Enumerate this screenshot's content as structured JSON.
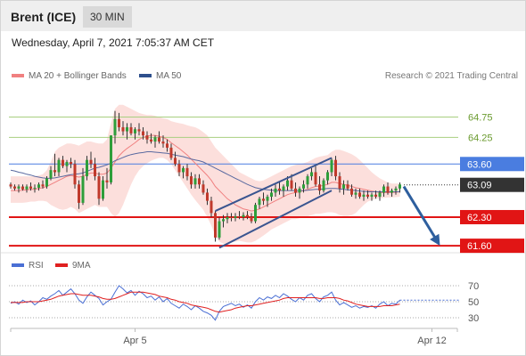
{
  "header": {
    "instrument": "Brent (ICE)",
    "timeframe": "30 MIN"
  },
  "date_text": "Wednesday, April 7, 2021 7:05:37 AM CET",
  "legend": {
    "ma20": {
      "label": "MA 20 + Bollinger Bands",
      "color": "#f08080"
    },
    "ma50": {
      "label": "MA 50",
      "color": "#2e4f8c"
    }
  },
  "credit": "Research © 2021 Trading Central",
  "rsi_legend": {
    "rsi": {
      "label": "RSI",
      "color": "#4a6fd4"
    },
    "ma9": {
      "label": "9MA",
      "color": "#e02020"
    }
  },
  "chart_data": [
    {
      "type": "candlestick",
      "ylim": [
        61.45,
        65.0
      ],
      "x_ticks": [
        "Apr 5",
        "Apr 12"
      ],
      "ohlc": [
        [
          63.1,
          63.15,
          63.0,
          63.05
        ],
        [
          63.05,
          63.1,
          62.95,
          63.0
        ],
        [
          63.0,
          63.1,
          62.9,
          63.05
        ],
        [
          63.05,
          63.1,
          62.95,
          62.98
        ],
        [
          62.98,
          63.1,
          62.9,
          63.05
        ],
        [
          63.05,
          63.15,
          62.95,
          63.0
        ],
        [
          63.0,
          63.1,
          62.9,
          63.02
        ],
        [
          63.02,
          63.15,
          62.95,
          63.1
        ],
        [
          63.1,
          63.2,
          63.0,
          63.05
        ],
        [
          63.05,
          63.3,
          63.0,
          63.25
        ],
        [
          63.25,
          63.55,
          63.2,
          63.45
        ],
        [
          63.45,
          63.85,
          63.3,
          63.4
        ],
        [
          63.4,
          63.75,
          63.3,
          63.7
        ],
        [
          63.7,
          63.8,
          63.5,
          63.55
        ],
        [
          63.55,
          63.7,
          63.4,
          63.65
        ],
        [
          63.65,
          63.75,
          63.5,
          63.6
        ],
        [
          63.6,
          63.7,
          63.0,
          63.1
        ],
        [
          63.1,
          63.2,
          62.5,
          62.65
        ],
        [
          62.65,
          63.5,
          62.6,
          63.3
        ],
        [
          63.3,
          63.8,
          63.2,
          63.7
        ],
        [
          63.7,
          63.9,
          63.5,
          63.6
        ],
        [
          63.6,
          63.75,
          63.2,
          63.3
        ],
        [
          63.3,
          63.4,
          62.6,
          62.75
        ],
        [
          62.75,
          63.3,
          62.7,
          63.2
        ],
        [
          63.2,
          63.5,
          63.0,
          63.15
        ],
        [
          63.15,
          64.3,
          63.1,
          64.3
        ],
        [
          64.3,
          64.9,
          64.1,
          64.7
        ],
        [
          64.7,
          64.85,
          64.4,
          64.5
        ],
        [
          64.5,
          64.65,
          64.3,
          64.4
        ],
        [
          64.4,
          64.6,
          64.2,
          64.5
        ],
        [
          64.5,
          64.6,
          64.3,
          64.35
        ],
        [
          64.35,
          64.5,
          64.2,
          64.45
        ],
        [
          64.45,
          64.6,
          64.3,
          64.4
        ],
        [
          64.4,
          64.5,
          64.2,
          64.3
        ],
        [
          64.3,
          64.4,
          64.1,
          64.2
        ],
        [
          64.2,
          64.35,
          64.1,
          64.15
        ],
        [
          64.15,
          64.3,
          64.0,
          64.25
        ],
        [
          64.25,
          64.4,
          64.1,
          64.15
        ],
        [
          64.15,
          64.3,
          64.0,
          64.1
        ],
        [
          64.1,
          64.2,
          63.9,
          64.0
        ],
        [
          64.0,
          64.1,
          63.7,
          63.75
        ],
        [
          63.75,
          63.9,
          63.55,
          63.6
        ],
        [
          63.6,
          63.7,
          63.3,
          63.4
        ],
        [
          63.4,
          63.55,
          63.25,
          63.5
        ],
        [
          63.5,
          63.6,
          63.2,
          63.3
        ],
        [
          63.3,
          63.4,
          63.0,
          63.1
        ],
        [
          63.1,
          63.35,
          63.0,
          63.25
        ],
        [
          63.25,
          63.35,
          63.0,
          63.1
        ],
        [
          63.1,
          63.2,
          62.85,
          62.9
        ],
        [
          62.9,
          63.0,
          62.6,
          62.7
        ],
        [
          62.7,
          62.8,
          62.3,
          62.4
        ],
        [
          62.4,
          62.45,
          61.7,
          61.8
        ],
        [
          61.8,
          62.3,
          61.75,
          62.2
        ],
        [
          62.2,
          62.35,
          62.05,
          62.25
        ],
        [
          62.25,
          62.4,
          62.15,
          62.3
        ],
        [
          62.3,
          62.4,
          62.2,
          62.28
        ],
        [
          62.28,
          62.4,
          62.2,
          62.32
        ],
        [
          62.32,
          62.45,
          62.25,
          62.3
        ],
        [
          62.3,
          62.42,
          62.22,
          62.35
        ],
        [
          62.35,
          62.45,
          62.25,
          62.3
        ],
        [
          62.3,
          62.4,
          62.15,
          62.2
        ],
        [
          62.2,
          62.65,
          62.15,
          62.6
        ],
        [
          62.6,
          62.8,
          62.5,
          62.75
        ],
        [
          62.75,
          62.9,
          62.6,
          62.7
        ],
        [
          62.7,
          62.85,
          62.55,
          62.8
        ],
        [
          62.8,
          63.0,
          62.7,
          62.9
        ],
        [
          62.9,
          63.1,
          62.8,
          63.0
        ],
        [
          63.0,
          63.15,
          62.85,
          62.95
        ],
        [
          62.95,
          63.1,
          62.8,
          63.05
        ],
        [
          63.05,
          63.3,
          62.95,
          63.2
        ],
        [
          63.2,
          63.35,
          62.95,
          63.0
        ],
        [
          63.0,
          63.15,
          62.8,
          62.9
        ],
        [
          62.9,
          63.05,
          62.75,
          63.0
        ],
        [
          63.0,
          63.2,
          62.9,
          63.1
        ],
        [
          63.1,
          63.35,
          63.0,
          63.3
        ],
        [
          63.3,
          63.5,
          63.2,
          63.4
        ],
        [
          63.4,
          63.55,
          63.05,
          63.1
        ],
        [
          63.1,
          63.3,
          62.85,
          62.95
        ],
        [
          62.95,
          63.25,
          62.9,
          63.2
        ],
        [
          63.2,
          63.45,
          63.1,
          63.4
        ],
        [
          63.4,
          63.75,
          63.3,
          63.7
        ],
        [
          63.7,
          63.8,
          63.2,
          63.3
        ],
        [
          63.3,
          63.4,
          62.9,
          63.0
        ],
        [
          63.0,
          63.2,
          62.85,
          63.1
        ],
        [
          63.1,
          63.2,
          62.95,
          63.0
        ],
        [
          63.0,
          63.1,
          62.8,
          62.85
        ],
        [
          62.85,
          63.0,
          62.75,
          62.9
        ],
        [
          62.9,
          63.0,
          62.75,
          62.8
        ],
        [
          62.8,
          62.95,
          62.7,
          62.85
        ],
        [
          62.85,
          62.95,
          62.75,
          62.8
        ],
        [
          62.8,
          62.9,
          62.7,
          62.85
        ],
        [
          62.85,
          62.95,
          62.75,
          62.8
        ],
        [
          62.8,
          62.95,
          62.7,
          62.9
        ],
        [
          62.9,
          63.1,
          62.8,
          63.05
        ],
        [
          63.05,
          63.15,
          62.85,
          62.9
        ],
        [
          62.9,
          63.0,
          62.8,
          62.95
        ],
        [
          62.95,
          63.05,
          62.85,
          63.0
        ],
        [
          63.0,
          63.15,
          62.9,
          63.1
        ]
      ],
      "ma20": [
        62.95,
        62.95,
        62.95,
        62.96,
        62.97,
        62.98,
        62.98,
        63.0,
        63.02,
        63.05,
        63.1,
        63.15,
        63.2,
        63.25,
        63.3,
        63.32,
        63.3,
        63.28,
        63.3,
        63.35,
        63.38,
        63.38,
        63.35,
        63.35,
        63.38,
        63.5,
        63.65,
        63.8,
        63.9,
        63.98,
        64.05,
        64.12,
        64.2,
        64.25,
        64.28,
        64.3,
        64.3,
        64.28,
        64.25,
        64.2,
        64.12,
        64.05,
        63.98,
        63.9,
        63.82,
        63.72,
        63.62,
        63.52,
        63.42,
        63.32,
        63.2,
        63.05,
        62.95,
        62.85,
        62.75,
        62.68,
        62.6,
        62.55,
        62.5,
        62.48,
        62.45,
        62.47,
        62.5,
        62.55,
        62.6,
        62.65,
        62.7,
        62.75,
        62.8,
        62.85,
        62.88,
        62.9,
        62.92,
        62.95,
        62.98,
        63.02,
        63.05,
        63.06,
        63.08,
        63.1,
        63.15,
        63.15,
        63.12,
        63.1,
        63.08,
        63.05,
        63.02,
        63.0,
        62.98,
        62.96,
        62.94,
        62.92,
        62.9,
        62.9,
        62.9,
        62.9,
        62.91,
        62.92
      ],
      "bb_upper": [
        63.3,
        63.3,
        63.3,
        63.3,
        63.3,
        63.3,
        63.3,
        63.32,
        63.35,
        63.45,
        63.65,
        63.9,
        64.0,
        64.05,
        64.1,
        64.1,
        64.08,
        64.05,
        64.1,
        64.15,
        64.15,
        64.12,
        64.1,
        64.1,
        64.2,
        64.6,
        64.95,
        65.05,
        65.05,
        65.0,
        64.95,
        64.9,
        64.85,
        64.82,
        64.8,
        64.8,
        64.78,
        64.75,
        64.72,
        64.7,
        64.65,
        64.62,
        64.6,
        64.58,
        64.55,
        64.52,
        64.5,
        64.45,
        64.38,
        64.3,
        64.15,
        64.0,
        63.9,
        63.8,
        63.7,
        63.6,
        63.5,
        63.4,
        63.35,
        63.3,
        63.25,
        63.2,
        63.18,
        63.2,
        63.25,
        63.3,
        63.35,
        63.4,
        63.45,
        63.5,
        63.55,
        63.58,
        63.6,
        63.62,
        63.65,
        63.7,
        63.75,
        63.78,
        63.8,
        63.82,
        63.9,
        63.95,
        63.95,
        63.92,
        63.88,
        63.84,
        63.78,
        63.7,
        63.6,
        63.5,
        63.4,
        63.32,
        63.25,
        63.2,
        63.15,
        63.12,
        63.12,
        63.12
      ],
      "bb_lower": [
        62.65,
        62.65,
        62.65,
        62.65,
        62.66,
        62.68,
        62.68,
        62.7,
        62.7,
        62.68,
        62.6,
        62.55,
        62.5,
        62.48,
        62.5,
        62.55,
        62.5,
        62.4,
        62.45,
        62.5,
        62.55,
        62.6,
        62.55,
        62.55,
        62.55,
        62.4,
        62.3,
        62.4,
        62.6,
        62.85,
        63.1,
        63.3,
        63.45,
        63.55,
        63.62,
        63.68,
        63.72,
        63.75,
        63.75,
        63.7,
        63.6,
        63.45,
        63.3,
        63.15,
        63.0,
        62.85,
        62.72,
        62.6,
        62.48,
        62.3,
        62.1,
        61.85,
        61.7,
        61.65,
        61.65,
        61.68,
        61.7,
        61.72,
        61.7,
        61.68,
        61.68,
        61.72,
        61.78,
        61.85,
        61.92,
        62.0,
        62.05,
        62.1,
        62.15,
        62.2,
        62.25,
        62.25,
        62.27,
        62.3,
        62.32,
        62.35,
        62.38,
        62.38,
        62.4,
        62.42,
        62.42,
        62.4,
        62.35,
        62.33,
        62.33,
        62.35,
        62.4,
        62.5,
        62.6,
        62.68,
        62.72,
        62.75,
        62.76,
        62.77,
        62.78,
        62.78,
        62.79,
        62.8
      ],
      "ma50": [
        63.45,
        63.43,
        63.4,
        63.38,
        63.35,
        63.33,
        63.3,
        63.28,
        63.26,
        63.25,
        63.25,
        63.26,
        63.28,
        63.3,
        63.32,
        63.34,
        63.35,
        63.36,
        63.38,
        63.42,
        63.46,
        63.5,
        63.52,
        63.55,
        63.58,
        63.62,
        63.68,
        63.72,
        63.76,
        63.8,
        63.83,
        63.85,
        63.87,
        63.88,
        63.9,
        63.9,
        63.89,
        63.88,
        63.87,
        63.86,
        63.84,
        63.82,
        63.8,
        63.78,
        63.75,
        63.72,
        63.7,
        63.68,
        63.65,
        63.6,
        63.55,
        63.5,
        63.45,
        63.4,
        63.35,
        63.3,
        63.25,
        63.2,
        63.15,
        63.1,
        63.06,
        63.02,
        63.0,
        62.98,
        62.97,
        62.96,
        62.95,
        62.95,
        62.95,
        62.95,
        62.95,
        62.95,
        62.95,
        62.95,
        62.96,
        62.97,
        62.98,
        62.98,
        62.99,
        63.0,
        63.0,
        63.0,
        62.99,
        62.98,
        62.97,
        62.96,
        62.95,
        62.94,
        62.93,
        62.92,
        62.92,
        62.92,
        62.92,
        62.92,
        62.92,
        62.92,
        62.92,
        62.92
      ],
      "levels": [
        {
          "value": 64.75,
          "label": "64.75",
          "kind": "target",
          "color": "#a8cf80"
        },
        {
          "value": 64.25,
          "label": "64.25",
          "kind": "target",
          "color": "#a8cf80"
        },
        {
          "value": 63.6,
          "label": "63.60",
          "kind": "pivot",
          "color": "#4a7de0"
        },
        {
          "value": 63.09,
          "label": "63.09",
          "kind": "last price",
          "color": "#333333"
        },
        {
          "value": 62.3,
          "label": "62.30",
          "kind": "support",
          "color": "#e11515"
        },
        {
          "value": 61.6,
          "label": "61.60",
          "kind": "support",
          "color": "#e11515"
        }
      ],
      "channel": {
        "upper": [
          {
            "bar": 51,
            "price": 62.45
          },
          {
            "bar": 80,
            "price": 63.75
          }
        ],
        "lower": [
          {
            "bar": 52,
            "price": 61.55
          },
          {
            "bar": 80,
            "price": 62.95
          }
        ]
      },
      "forecast_arrow": {
        "from": {
          "bar": 98,
          "price": 63.05
        },
        "to": {
          "bar": 107,
          "price": 61.6
        }
      }
    },
    {
      "type": "line",
      "title": "RSI",
      "ylim": [
        20,
        80
      ],
      "y_ticks": [
        "70",
        "50",
        "30"
      ],
      "series": [
        {
          "name": "RSI",
          "color": "#4a6fd4",
          "values": [
            48,
            50,
            47,
            52,
            49,
            51,
            46,
            50,
            55,
            53,
            57,
            60,
            64,
            58,
            62,
            66,
            60,
            52,
            48,
            56,
            62,
            58,
            54,
            46,
            50,
            53,
            62,
            70,
            66,
            61,
            64,
            58,
            63,
            60,
            55,
            57,
            52,
            56,
            50,
            54,
            48,
            45,
            42,
            47,
            44,
            40,
            45,
            42,
            38,
            36,
            33,
            27,
            38,
            44,
            46,
            48,
            45,
            47,
            43,
            46,
            42,
            50,
            55,
            52,
            56,
            54,
            58,
            55,
            60,
            57,
            53,
            50,
            55,
            52,
            58,
            60,
            54,
            50,
            56,
            58,
            62,
            52,
            46,
            49,
            46,
            43,
            45,
            42,
            44,
            43,
            45,
            42,
            47,
            50,
            45,
            48,
            47,
            52
          ]
        },
        {
          "name": "9MA",
          "color": "#e02020",
          "values": [
            49,
            49,
            49,
            49,
            50,
            50,
            50,
            50,
            51,
            52,
            53,
            55,
            57,
            58,
            59,
            60,
            60,
            59,
            58,
            58,
            58,
            57,
            56,
            54,
            53,
            53,
            54,
            56,
            58,
            60,
            62,
            62,
            62,
            62,
            61,
            60,
            59,
            57,
            56,
            55,
            53,
            52,
            50,
            49,
            48,
            46,
            45,
            44,
            43,
            42,
            40,
            38,
            37,
            38,
            39,
            40,
            42,
            43,
            44,
            45,
            45,
            46,
            47,
            48,
            49,
            50,
            51,
            52,
            54,
            55,
            55,
            55,
            55,
            55,
            55,
            55,
            55,
            54,
            54,
            55,
            55,
            55,
            54,
            52,
            51,
            49,
            47,
            46,
            45,
            44,
            44,
            44,
            44,
            45,
            45,
            45,
            46,
            47
          ]
        }
      ],
      "x_ticks": [
        "Apr 5",
        "Apr 12"
      ]
    }
  ]
}
